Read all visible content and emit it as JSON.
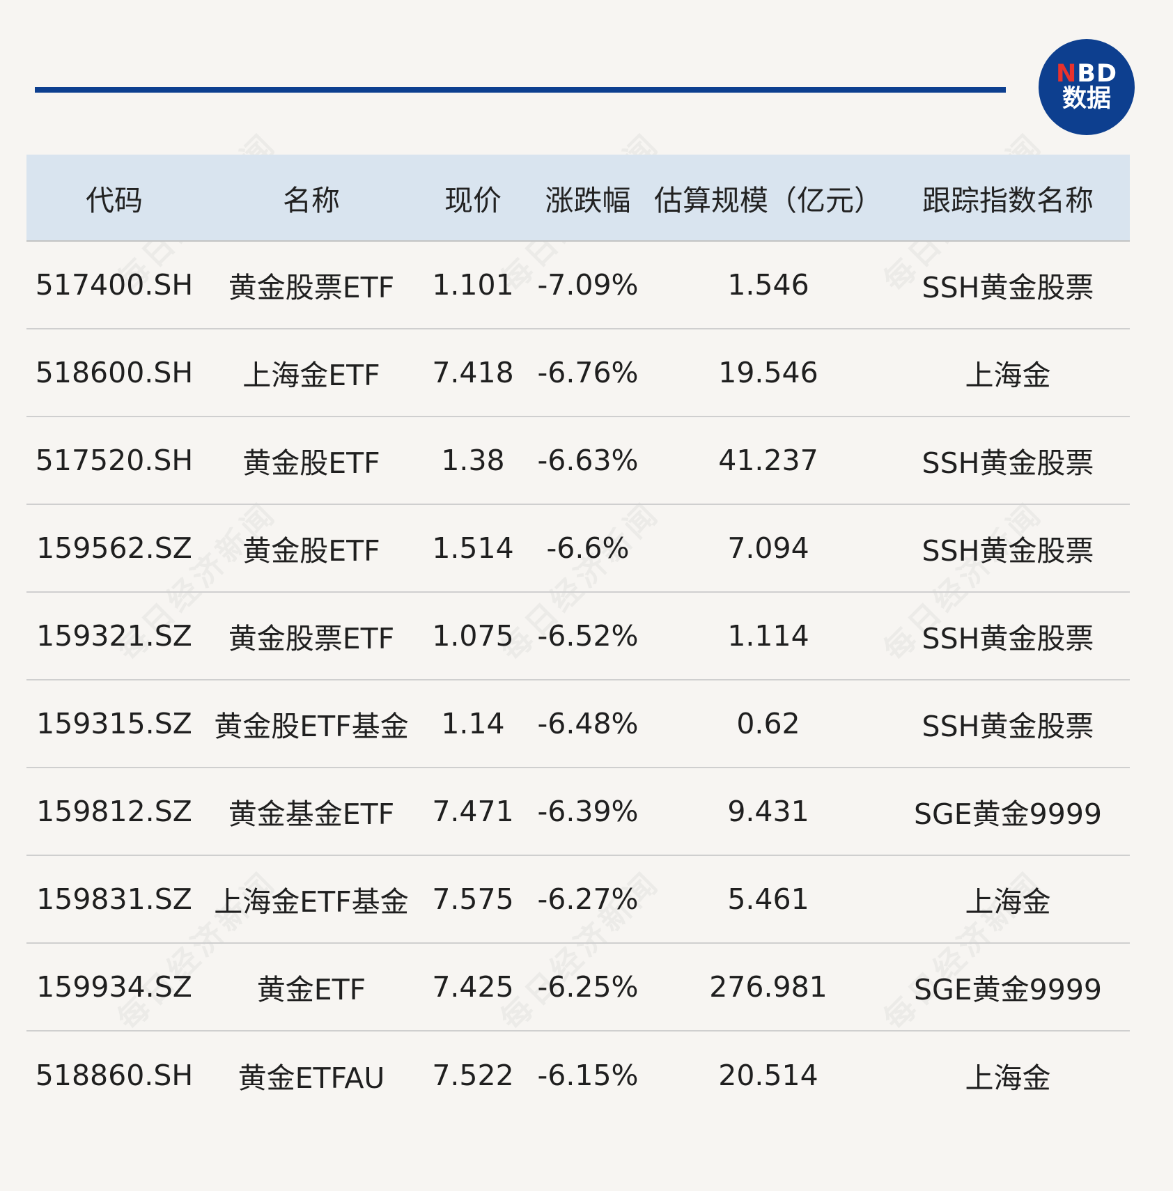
{
  "logo": {
    "accent_letter": "N",
    "rest": "BD",
    "line2": "数据"
  },
  "watermark_text": "每日经济新闻",
  "table": {
    "headers": [
      "代码",
      "名称",
      "现价",
      "涨跌幅",
      "估算规模（亿元）",
      "跟踪指数名称"
    ],
    "rows": [
      [
        "517400.SH",
        "黄金股票ETF",
        "1.101",
        "-7.09%",
        "1.546",
        "SSH黄金股票"
      ],
      [
        "518600.SH",
        "上海金ETF",
        "7.418",
        "-6.76%",
        "19.546",
        "上海金"
      ],
      [
        "517520.SH",
        "黄金股ETF",
        "1.38",
        "-6.63%",
        "41.237",
        "SSH黄金股票"
      ],
      [
        "159562.SZ",
        "黄金股ETF",
        "1.514",
        "-6.6%",
        "7.094",
        "SSH黄金股票"
      ],
      [
        "159321.SZ",
        "黄金股票ETF",
        "1.075",
        "-6.52%",
        "1.114",
        "SSH黄金股票"
      ],
      [
        "159315.SZ",
        "黄金股ETF基金",
        "1.14",
        "-6.48%",
        "0.62",
        "SSH黄金股票"
      ],
      [
        "159812.SZ",
        "黄金基金ETF",
        "7.471",
        "-6.39%",
        "9.431",
        "SGE黄金9999"
      ],
      [
        "159831.SZ",
        "上海金ETF基金",
        "7.575",
        "-6.27%",
        "5.461",
        "上海金"
      ],
      [
        "159934.SZ",
        "黄金ETF",
        "7.425",
        "-6.25%",
        "276.981",
        "SGE黄金9999"
      ],
      [
        "518860.SH",
        "黄金ETFAU",
        "7.522",
        "-6.15%",
        "20.514",
        "上海金"
      ]
    ]
  },
  "colors": {
    "brand_blue": "#0d3f8f",
    "accent_red": "#e8322d",
    "header_bg": "#d9e4ef",
    "page_bg": "#f7f5f2"
  }
}
